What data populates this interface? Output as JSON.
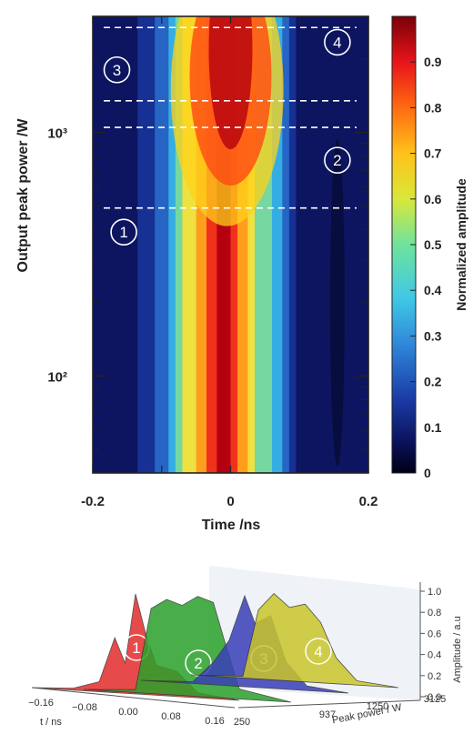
{
  "chart_data": [
    {
      "type": "heatmap",
      "xlabel": "Time /ns",
      "ylabel": "Output peak power /W",
      "xlim": [
        -0.2,
        0.2
      ],
      "ylim": [
        40,
        3000
      ],
      "yscale": "log",
      "x_ticks": [
        "-0.2",
        "0",
        "0.2"
      ],
      "y_ticks": [
        "10²",
        "10³"
      ],
      "colorbar": {
        "label": "Normalized amplitude",
        "ticks": [
          "0",
          "0.1",
          "0.2",
          "0.3",
          "0.4",
          "0.5",
          "0.6",
          "0.7",
          "0.8",
          "0.9"
        ],
        "range": [
          0,
          1
        ],
        "colormap": "jet"
      },
      "dashed_lines_y": [
        490,
        1050,
        1350,
        2700
      ],
      "region_markers": [
        {
          "label": "1",
          "x": -0.155,
          "y": 390
        },
        {
          "label": "2",
          "x": 0.155,
          "y": 770
        },
        {
          "label": "3",
          "x": -0.165,
          "y": 1810
        },
        {
          "label": "4",
          "x": 0.155,
          "y": 2350
        }
      ]
    },
    {
      "type": "area",
      "xlabel": "t / ns",
      "ylabel": "Peak power / W",
      "zlabel": "Amplitude / a.u",
      "x_ticks": [
        "−0.16",
        "−0.08",
        "0.00",
        "0.08",
        "0.16"
      ],
      "y_ticks": [
        "250",
        "937",
        "1250",
        "3125"
      ],
      "z_ticks": [
        "0.0",
        "0.2",
        "0.4",
        "0.6",
        "0.8",
        "1.0"
      ],
      "series": [
        {
          "name": "1",
          "peak_power": 250,
          "color": "#e32b2b"
        },
        {
          "name": "2",
          "peak_power": 937,
          "color": "#2aa12a"
        },
        {
          "name": "3",
          "peak_power": 1250,
          "color": "#3a3fb8"
        },
        {
          "name": "4",
          "peak_power": 3125,
          "color": "#c9c62a"
        }
      ]
    }
  ]
}
